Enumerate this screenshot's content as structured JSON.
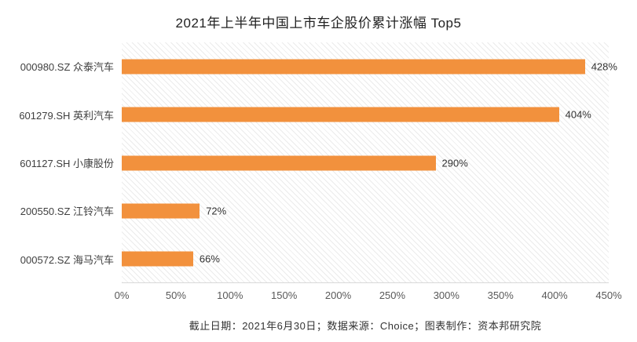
{
  "chart_data": {
    "type": "bar",
    "orientation": "horizontal",
    "title": "2021年上半年中国上市车企股价累计涨幅 Top5",
    "categories": [
      "000980.SZ 众泰汽车",
      "601279.SH 英利汽车",
      "601127.SH 小康股份",
      "200550.SZ 江铃汽车",
      "000572.SZ 海马汽车"
    ],
    "values": [
      428,
      404,
      290,
      72,
      66
    ],
    "value_labels": [
      "428%",
      "404%",
      "290%",
      "72%",
      "66%"
    ],
    "xlabel": "",
    "ylabel": "",
    "xlim": [
      0,
      450
    ],
    "xticks": [
      "0%",
      "50%",
      "100%",
      "150%",
      "200%",
      "250%",
      "300%",
      "350%",
      "400%",
      "450%"
    ],
    "bar_color": "#F2913D",
    "grid": false,
    "legend_position": "none",
    "plot_background": "diagonal-hatch"
  },
  "footer": {
    "text": "截止日期：2021年6月30日；数据来源：Choice；图表制作：资本邦研究院"
  }
}
